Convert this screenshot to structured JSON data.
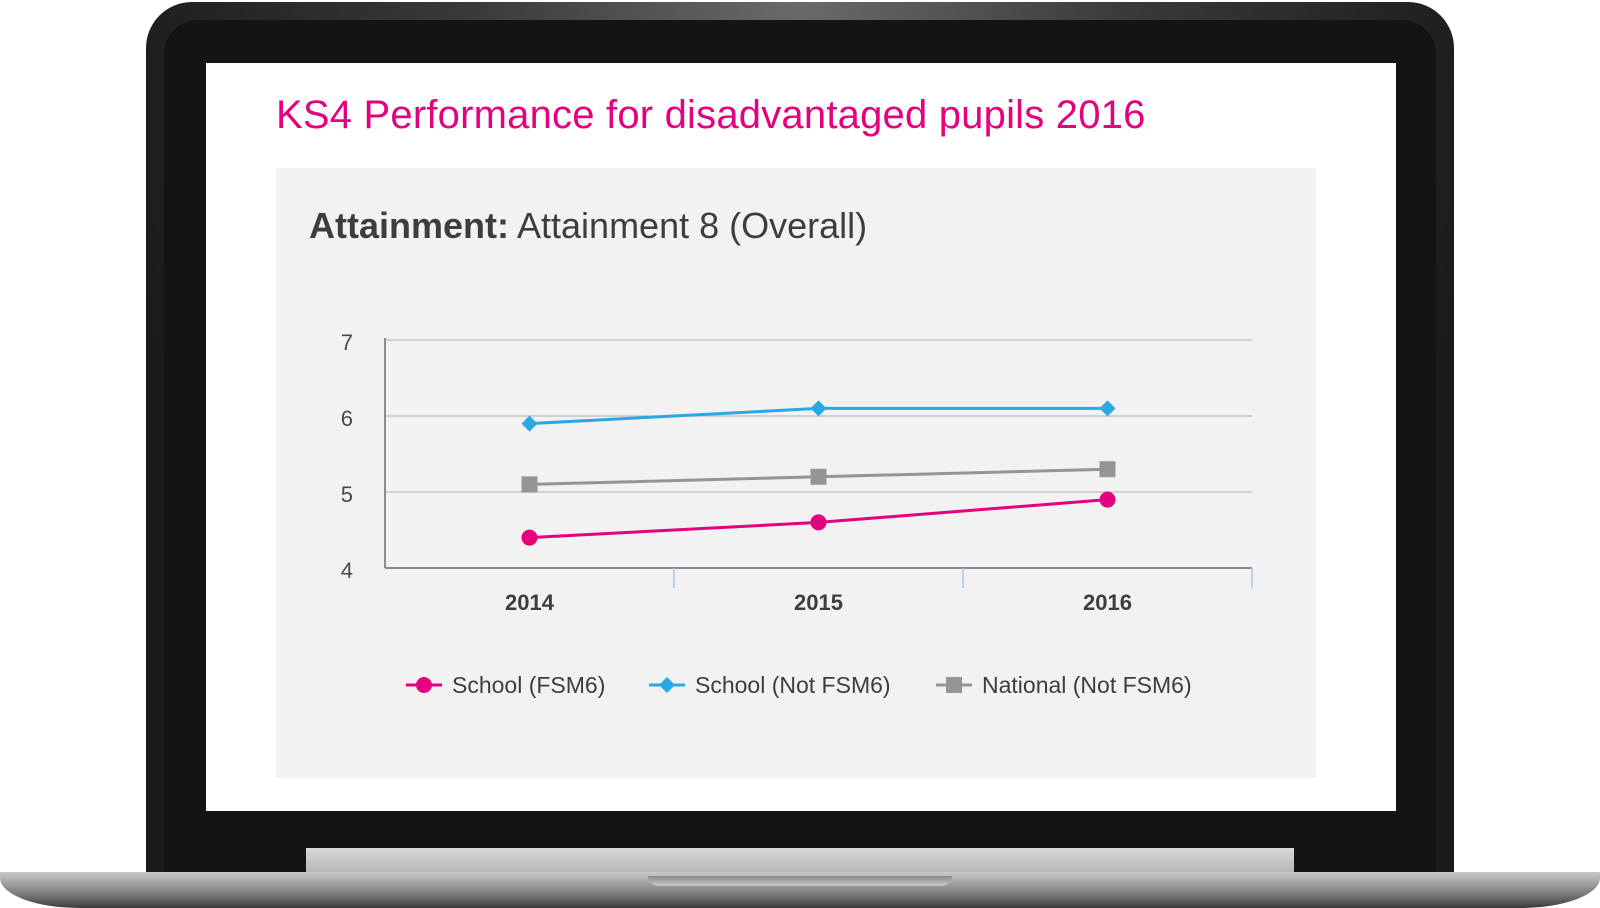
{
  "slide": {
    "title": "KS4 Performance for disadvantaged pupils 2016"
  },
  "heading": {
    "bold": "Attainment:",
    "rest": "Attainment 8 (Overall)"
  },
  "chart_data": {
    "type": "line",
    "title": "",
    "xlabel": "",
    "ylabel": "",
    "categories": [
      "2014",
      "2015",
      "2016"
    ],
    "ylim": [
      4,
      7
    ],
    "yticks": [
      "4",
      "5",
      "6",
      "7"
    ],
    "grid": "horizontal",
    "legend_position": "bottom",
    "series": [
      {
        "name": "School (FSM6)",
        "values": [
          4.4,
          4.6,
          4.9
        ],
        "color": "#e5007e",
        "marker": "circle"
      },
      {
        "name": "School (Not FSM6)",
        "values": [
          5.9,
          6.1,
          6.1
        ],
        "color": "#29a9e1",
        "marker": "diamond"
      },
      {
        "name": "National (Not FSM6)",
        "values": [
          5.1,
          5.2,
          5.3
        ],
        "color": "#959595",
        "marker": "square"
      }
    ]
  },
  "colors": {
    "title": "#e5007e",
    "panel": "#f2f2f2",
    "text": "#3d3d3d"
  }
}
